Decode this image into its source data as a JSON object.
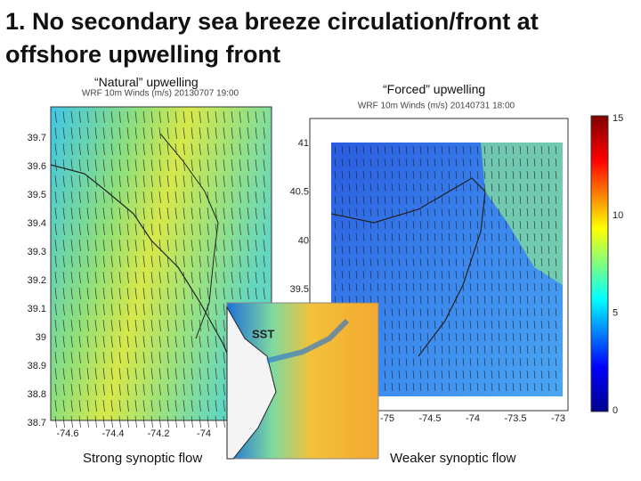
{
  "title": "1. No secondary sea breeze circulation/front at offshore upwelling front",
  "left_panel": {
    "heading": "“Natural” upwelling",
    "plot_title": "WRF 10m Winds (m/s) 20130707 19:00",
    "y_ticks": [
      "39.7",
      "39.6",
      "39.5",
      "39.4",
      "39.3",
      "39.2",
      "39.1",
      "39",
      "38.9",
      "38.8",
      "38.7"
    ],
    "x_ticks": [
      "-74.6",
      "-74.4",
      "-74.2",
      "-74"
    ],
    "caption": "Strong synoptic flow"
  },
  "right_panel": {
    "heading": "“Forced” upwelling",
    "plot_title": "WRF 10m Winds (m/s) 20140731 18:00",
    "y_ticks": [
      "41",
      "40.5",
      "40",
      "39.5"
    ],
    "x_ticks": [
      "-75",
      "-74.5",
      "-74",
      "-73.5",
      "-73"
    ],
    "colorbar_ticks": [
      "15",
      "10",
      "5",
      "0"
    ],
    "caption": "Weaker synoptic flow"
  },
  "inset": {
    "label": "SST"
  }
}
